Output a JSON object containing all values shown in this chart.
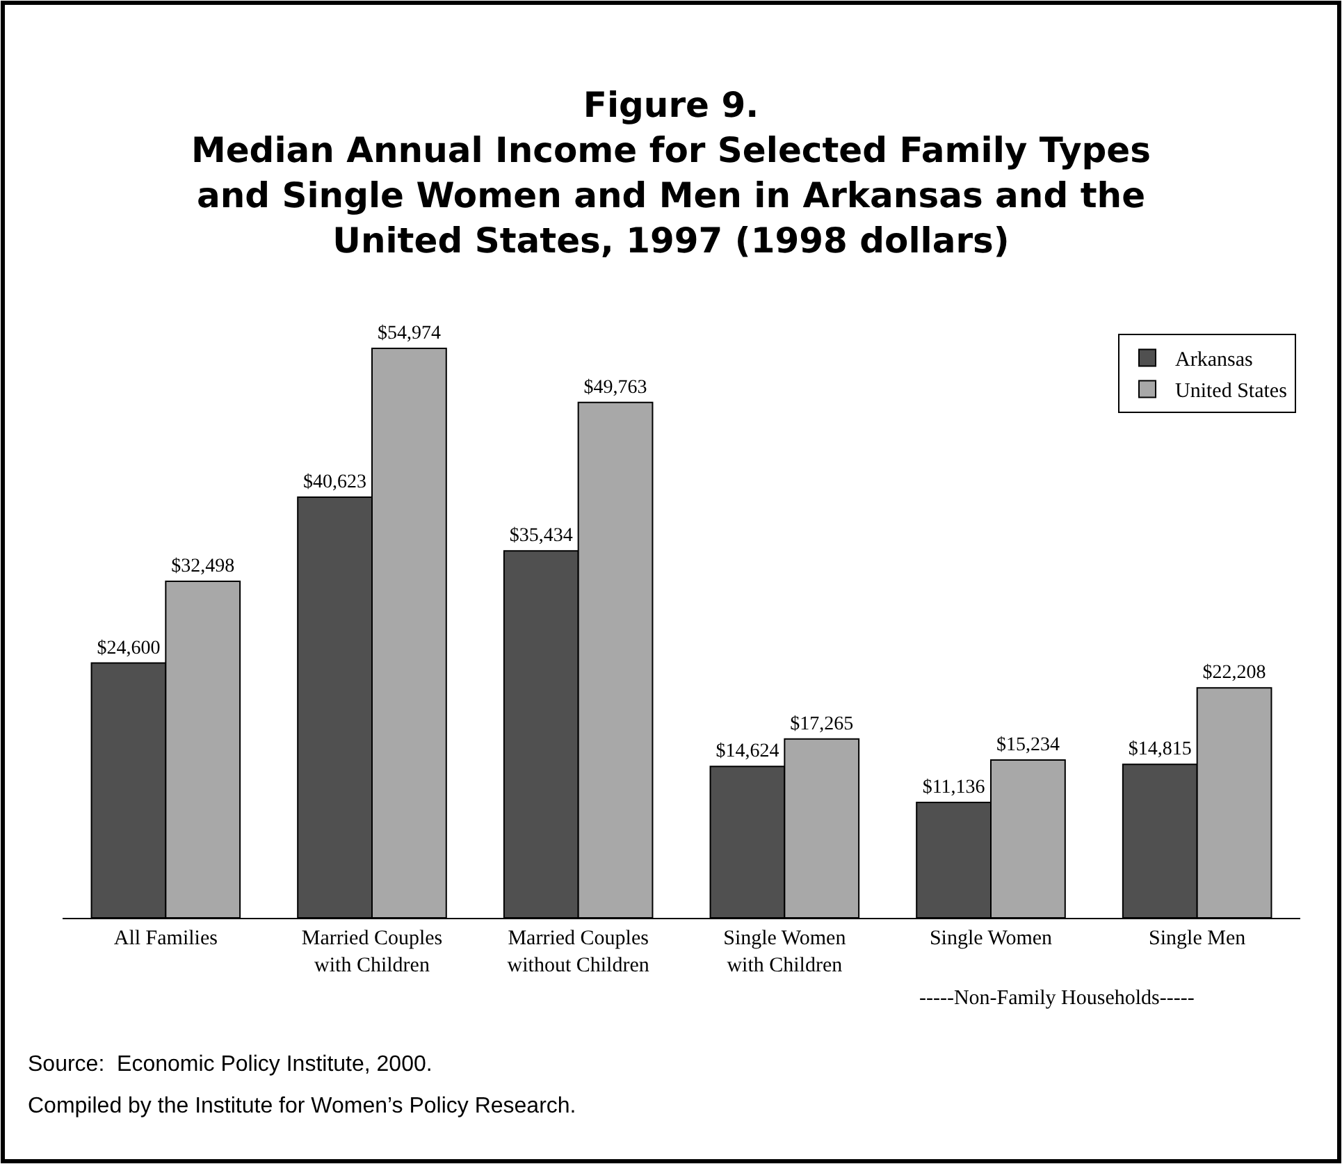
{
  "chart_data": {
    "type": "bar",
    "title": "Figure 9.",
    "subtitle": "Median Annual Income for Selected Family Types and Single Women and Men in Arkansas and the United States, 1997 (1998 dollars)",
    "categories": [
      "All Families",
      "Married Couples with Children",
      "Married Couples without Children",
      "Single Women with Children",
      "Single Women",
      "Single Men"
    ],
    "series": [
      {
        "name": "Arkansas",
        "color": "#505050",
        "values": [
          24600,
          40623,
          35434,
          14624,
          11136,
          14815
        ],
        "value_labels": [
          "$24,600",
          "$40,623",
          "$35,434",
          "$14,624",
          "$11,136",
          "$14,815"
        ]
      },
      {
        "name": "United States",
        "color": "#a8a8a8",
        "values": [
          32498,
          54974,
          49763,
          17265,
          15234,
          22208
        ],
        "value_labels": [
          "$32,498",
          "$54,974",
          "$49,763",
          "$17,265",
          "$15,234",
          "$22,208"
        ]
      }
    ],
    "tick_labels": "x",
    "legend": "top right",
    "annotations": [
      "-----Non-Family Households-----",
      "Source:  Economic Policy Institute, 2000.",
      "Compiled by the Institute for Women’s Policy Research."
    ]
  }
}
